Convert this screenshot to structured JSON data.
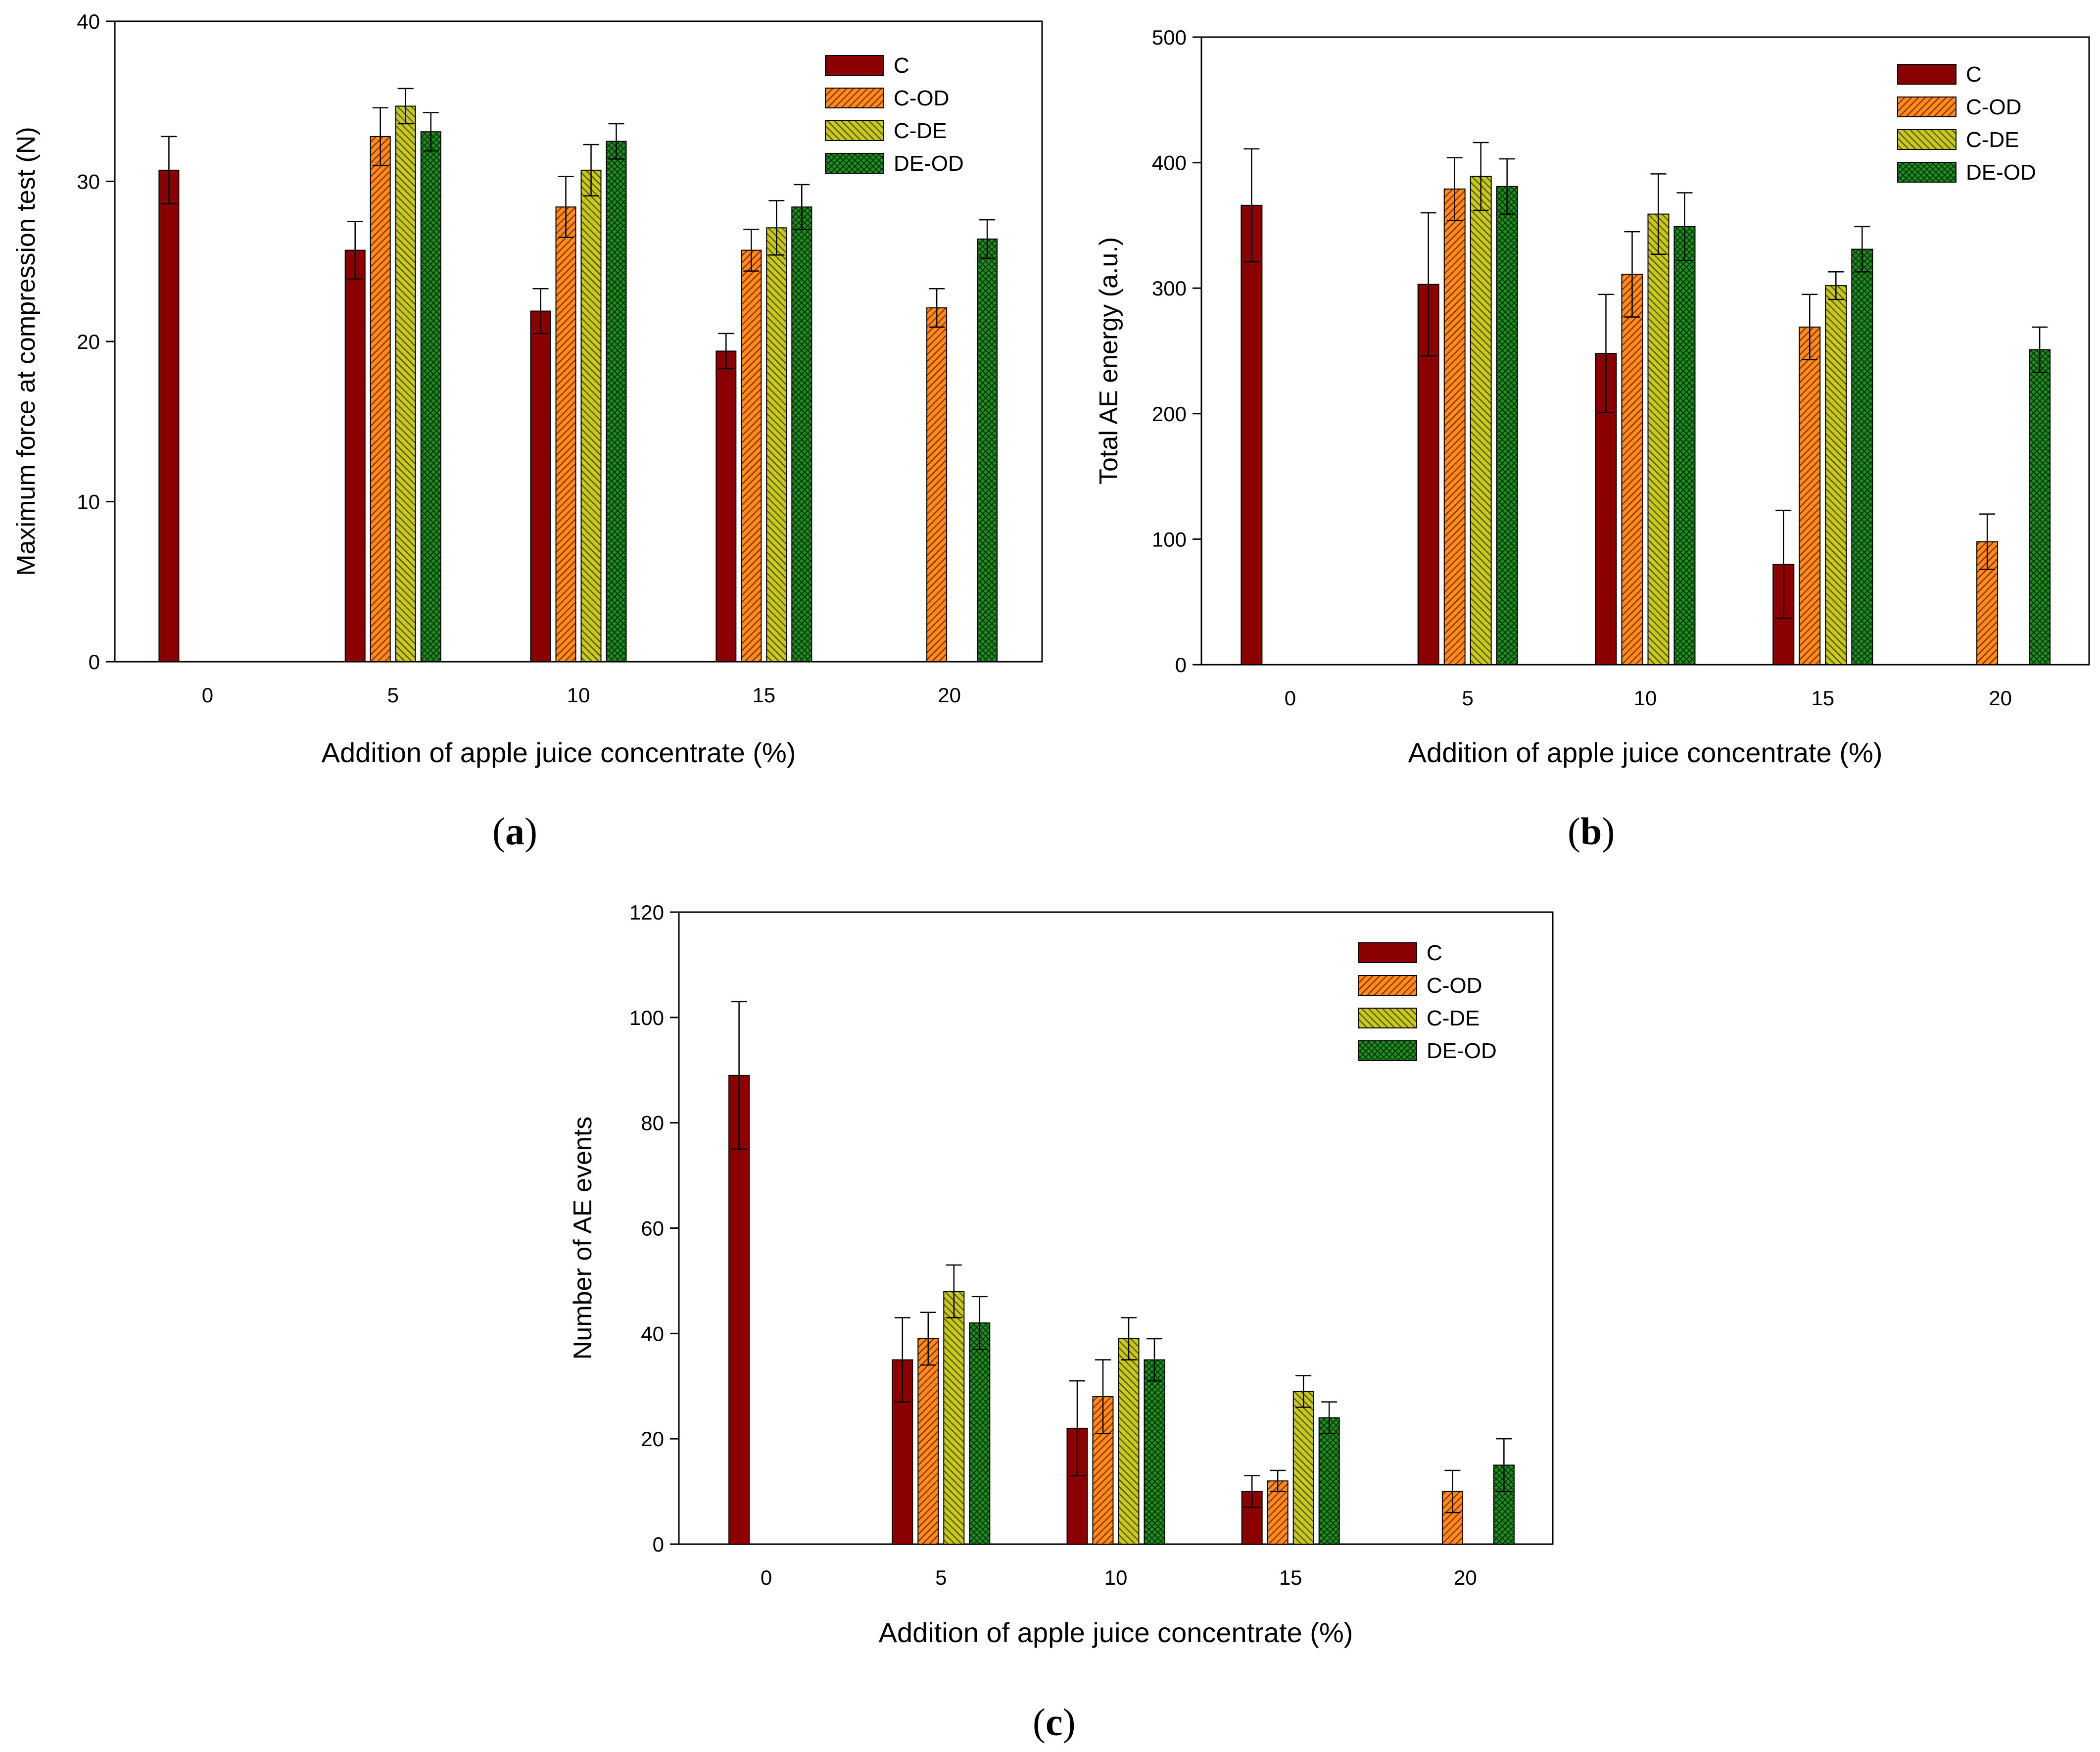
{
  "figure": {
    "panel_labels": [
      "a",
      "b",
      "c"
    ],
    "series_colors": {
      "C": "#8B0000",
      "C-OD": "#FF8C1A",
      "C-DE": "#C8C81E",
      "DE-OD": "#1E8C1E"
    }
  },
  "chart_data": [
    {
      "id": "a",
      "type": "bar",
      "title": "",
      "xlabel": "Addition of apple juice concentrate (%)",
      "ylabel": "Maximum force at compression test (N)",
      "categories": [
        "0",
        "5",
        "10",
        "15",
        "20"
      ],
      "ylim": [
        0,
        40
      ],
      "yticks": [
        0,
        10,
        20,
        30,
        40
      ],
      "legend_position": "top-right",
      "series": [
        {
          "name": "C",
          "values": [
            30.7,
            25.7,
            21.9,
            19.4,
            null
          ],
          "errors": [
            2.1,
            1.8,
            1.4,
            1.1,
            null
          ]
        },
        {
          "name": "C-OD",
          "values": [
            null,
            32.8,
            28.4,
            25.7,
            22.1
          ],
          "errors": [
            null,
            1.8,
            1.9,
            1.3,
            1.2
          ]
        },
        {
          "name": "C-DE",
          "values": [
            null,
            34.7,
            30.7,
            27.1,
            null
          ],
          "errors": [
            null,
            1.1,
            1.6,
            1.7,
            null
          ]
        },
        {
          "name": "DE-OD",
          "values": [
            null,
            33.1,
            32.5,
            28.4,
            26.4
          ],
          "errors": [
            null,
            1.2,
            1.1,
            1.4,
            1.2
          ]
        }
      ]
    },
    {
      "id": "b",
      "type": "bar",
      "title": "",
      "xlabel": "Addition of apple juice concentrate (%)",
      "ylabel": "Total AE energy (a.u.)",
      "categories": [
        "0",
        "5",
        "10",
        "15",
        "20"
      ],
      "ylim": [
        0,
        500
      ],
      "yticks": [
        0,
        100,
        200,
        300,
        400,
        500
      ],
      "legend_position": "top-right",
      "series": [
        {
          "name": "C",
          "values": [
            366,
            303,
            248,
            80,
            null
          ],
          "errors": [
            45,
            57,
            47,
            43,
            null
          ]
        },
        {
          "name": "C-OD",
          "values": [
            null,
            379,
            311,
            269,
            98
          ],
          "errors": [
            null,
            25,
            34,
            26,
            22
          ]
        },
        {
          "name": "C-DE",
          "values": [
            null,
            389,
            359,
            302,
            null
          ],
          "errors": [
            null,
            27,
            32,
            11,
            null
          ]
        },
        {
          "name": "DE-OD",
          "values": [
            null,
            381,
            349,
            331,
            251
          ],
          "errors": [
            null,
            22,
            27,
            18,
            18
          ]
        }
      ]
    },
    {
      "id": "c",
      "type": "bar",
      "title": "",
      "xlabel": "Addition of apple juice concentrate (%)",
      "ylabel": "Number of AE events",
      "categories": [
        "0",
        "5",
        "10",
        "15",
        "20"
      ],
      "ylim": [
        0,
        120
      ],
      "yticks": [
        0,
        20,
        40,
        60,
        80,
        100,
        120
      ],
      "legend_position": "top-right",
      "series": [
        {
          "name": "C",
          "values": [
            89,
            35,
            22,
            10,
            null
          ],
          "errors": [
            14,
            8,
            9,
            3,
            null
          ]
        },
        {
          "name": "C-OD",
          "values": [
            null,
            39,
            28,
            12,
            10
          ],
          "errors": [
            null,
            5,
            7,
            2,
            4
          ]
        },
        {
          "name": "C-DE",
          "values": [
            null,
            48,
            39,
            29,
            null
          ],
          "errors": [
            null,
            5,
            4,
            3,
            null
          ]
        },
        {
          "name": "DE-OD",
          "values": [
            null,
            42,
            35,
            24,
            15
          ],
          "errors": [
            null,
            5,
            4,
            3,
            5
          ]
        }
      ]
    }
  ]
}
